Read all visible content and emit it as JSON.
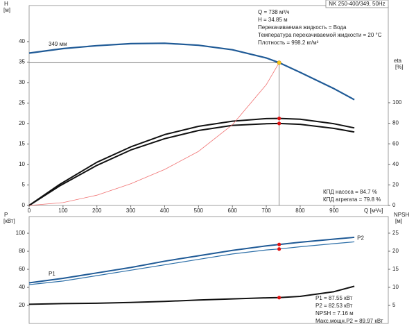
{
  "chart_data": [
    {
      "type": "line",
      "title": "NK 250-400/349, 50Hz",
      "ylabel": "H",
      "ylabel_unit": "[м]",
      "y2label": "eta",
      "y2label_unit": "[%]",
      "xlabel": "Q [м³/ч]",
      "xlim": [
        0,
        1060
      ],
      "ylim": [
        0,
        48.8
      ],
      "y2lim": [
        0,
        194.6
      ],
      "xticks": [
        0,
        100,
        200,
        300,
        400,
        500,
        600,
        700,
        800,
        900
      ],
      "yticks": [
        0,
        5,
        10,
        15,
        20,
        25,
        30,
        35,
        40
      ],
      "y2ticks": [
        0,
        20,
        40,
        60,
        80,
        100
      ],
      "annotations": [
        "Q = 738 м³/ч",
        "H = 34.85 м",
        "Перекачиваемая жидкость = Вода",
        "Температура перекачиваемой жидкости = 20 °C",
        "Плотность = 998.2 кг/м³"
      ],
      "bottom_annotations": [
        "КПД насоса = 84.7 %",
        "КПД агрегата = 79.8 %"
      ],
      "operating_point": {
        "x": 738,
        "y": 34.85,
        "color": "#f5c518"
      },
      "series": [
        {
          "name": "349 мм",
          "color": "#1f5a96",
          "width": 2.2,
          "x": [
            0,
            100,
            200,
            300,
            400,
            500,
            600,
            700,
            738,
            800,
            900,
            960
          ],
          "values": [
            37.2,
            38.3,
            39.0,
            39.5,
            39.6,
            39.1,
            38.0,
            36.0,
            34.85,
            32.5,
            28.5,
            25.8
          ]
        },
        {
          "color": "#111111",
          "width": 2.0,
          "axis": "y2",
          "marker": 8,
          "x": [
            0,
            90,
            200,
            300,
            400,
            500,
            600,
            700,
            738,
            800,
            900,
            960
          ],
          "values": [
            0,
            20.5,
            42,
            57,
            69,
            77,
            82,
            84.5,
            84.7,
            84,
            79.5,
            75.5
          ]
        },
        {
          "color": "#111111",
          "width": 2.0,
          "axis": "y2",
          "marker": 8,
          "x": [
            0,
            90,
            200,
            300,
            400,
            500,
            600,
            700,
            738,
            800,
            900,
            960
          ],
          "values": [
            0,
            19,
            39,
            54,
            65,
            73,
            78,
            79.5,
            79.8,
            79,
            75,
            71.5
          ]
        },
        {
          "color": "#f07070",
          "width": 0.8,
          "x": [
            0,
            100,
            200,
            300,
            400,
            500,
            600,
            700,
            738
          ],
          "values": [
            0,
            0.7,
            2.5,
            5.3,
            8.8,
            13.2,
            19.7,
            29.5,
            34.85
          ]
        }
      ]
    },
    {
      "type": "line",
      "ylabel": "P",
      "ylabel_unit": "[кВт]",
      "y2label": "NPSH",
      "y2label_unit": "[м]",
      "xlim": [
        0,
        1060
      ],
      "ylim": [
        0,
        118.5
      ],
      "y2lim": [
        0,
        29.6
      ],
      "yticks": [
        20,
        40,
        60,
        80,
        100
      ],
      "y2ticks": [
        5,
        10,
        15,
        20,
        25
      ],
      "annotations": [
        "P1 = 87.55 кВт",
        "P2 = 82.53 кВт",
        "NPSH = 7.16 м",
        "Макс.мощн.P2 = 89.97 кВт"
      ],
      "series": [
        {
          "name": "P1",
          "color": "#1f5a96",
          "width": 2.0,
          "marker": 8,
          "x": [
            0,
            100,
            200,
            300,
            400,
            500,
            600,
            700,
            738,
            800,
            900,
            960
          ],
          "values": [
            45,
            50,
            56,
            62,
            69,
            75,
            81,
            86,
            87.55,
            90,
            93.5,
            95.5
          ]
        },
        {
          "name": "P2",
          "color": "#2d6fa8",
          "width": 1.2,
          "marker": 8,
          "x": [
            0,
            100,
            200,
            300,
            400,
            500,
            600,
            700,
            738,
            800,
            900,
            960
          ],
          "values": [
            43,
            47,
            53,
            59,
            65,
            71,
            77,
            81.5,
            82.53,
            85,
            88.5,
            90.5
          ]
        },
        {
          "color": "#111111",
          "width": 2.0,
          "axis": "y2",
          "marker": 8,
          "x": [
            0,
            100,
            200,
            300,
            400,
            500,
            600,
            700,
            738,
            800,
            900,
            960
          ],
          "values": [
            5.3,
            5.5,
            5.6,
            5.8,
            6.1,
            6.5,
            6.8,
            7.1,
            7.16,
            7.5,
            8.8,
            10.3
          ]
        }
      ]
    }
  ]
}
